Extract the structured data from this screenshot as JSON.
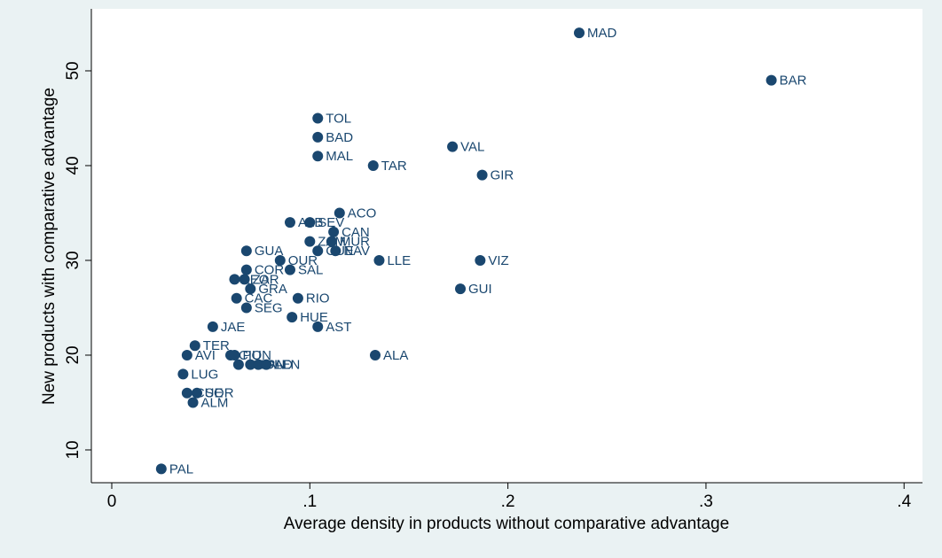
{
  "chart_data": {
    "type": "scatter",
    "x_label": "Average density in products without comparative advantage",
    "y_label": "New products with comparative advantage",
    "color": "#1a476f",
    "xlim": [
      -0.0103,
      0.4093
    ],
    "ylim": [
      6.54,
      56.54
    ],
    "xticks": [
      0,
      {
        "value": 0.1,
        "label": ".1"
      },
      {
        "value": 0.2,
        "label": ".2"
      },
      {
        "value": 0.3,
        "label": ".3"
      },
      {
        "value": 0.4,
        "label": ".4"
      }
    ],
    "yticks": [
      10,
      20,
      30,
      40,
      50
    ],
    "grid": false,
    "labels": [
      "MAD",
      "BAR",
      "TOL",
      "BAD",
      "MAL",
      "VAL",
      "TAR",
      "GIR",
      "ACO",
      "ALB",
      "SEV",
      "CAN",
      "ZAM",
      "MUR",
      "CUE",
      "NAV",
      "LLE",
      "VIZ",
      "GUI",
      "GUA",
      "OUR",
      "COR",
      "SAL",
      "LEO",
      "ZAR",
      "GRA",
      "CAC",
      "RIO",
      "SEG",
      "HUE",
      "AST",
      "JAE",
      "TER",
      "AVI",
      "CIU",
      "PON",
      "CAD",
      "SAN",
      "PAD",
      "LEN",
      "ALA",
      "LUG",
      "CUE",
      "SOR",
      "ALM",
      "PAL"
    ],
    "x": [
      0.236,
      0.333,
      0.104,
      0.104,
      0.104,
      0.172,
      0.132,
      0.187,
      0.115,
      0.09,
      0.1,
      0.112,
      0.1,
      0.111,
      0.104,
      0.113,
      0.135,
      0.186,
      0.176,
      0.068,
      0.085,
      0.068,
      0.09,
      0.062,
      0.067,
      0.07,
      0.063,
      0.094,
      0.068,
      0.091,
      0.104,
      0.051,
      0.042,
      0.038,
      0.06,
      0.062,
      0.064,
      0.07,
      0.074,
      0.078,
      0.133,
      0.036,
      0.038,
      0.043,
      0.041,
      0.025
    ],
    "y": [
      54,
      49,
      45,
      43,
      41,
      42,
      40,
      39,
      35,
      34,
      34,
      33,
      32,
      32,
      31,
      31,
      30,
      30,
      27,
      31,
      30,
      29,
      29,
      28,
      28,
      27,
      26,
      26,
      25,
      24,
      23,
      23,
      21,
      20,
      20,
      20,
      19,
      19,
      19,
      19,
      20,
      18,
      16,
      16,
      15,
      8
    ]
  }
}
